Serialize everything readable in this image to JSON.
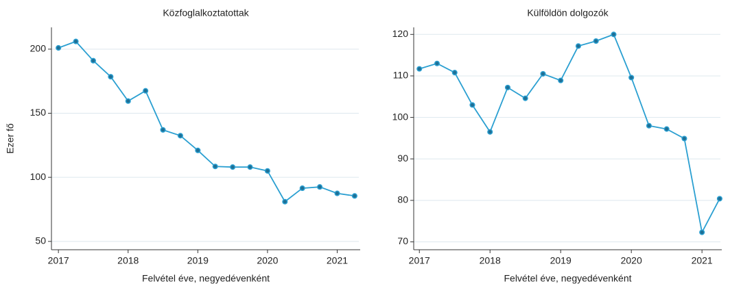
{
  "chart_data": [
    {
      "type": "line",
      "title": "Közfoglalkoztatottak",
      "x_label": "Felvétel éve, negyedévenként",
      "y_label": "Ezer fő",
      "x": [
        2017,
        2017.25,
        2017.5,
        2017.75,
        2018,
        2018.25,
        2018.5,
        2018.75,
        2019,
        2019.25,
        2019.5,
        2019.75,
        2020,
        2020.25,
        2020.5,
        2020.75,
        2021,
        2021.25
      ],
      "series": [
        {
          "name": "Közfoglalkoztatottak",
          "color": "#2a9fd1",
          "values": [
            201,
            206,
            191,
            178.5,
            159.5,
            167.5,
            137,
            132.5,
            121,
            108.5,
            108,
            108,
            105,
            81,
            91.5,
            92.5,
            87.5,
            85.5
          ]
        }
      ],
      "xlim": [
        2016.9,
        2021.33
      ],
      "xticks": [
        2017,
        2018,
        2019,
        2020,
        2021
      ],
      "ylim": [
        43.5,
        217
      ],
      "yticks": [
        50,
        100,
        150,
        200
      ],
      "grid": true
    },
    {
      "type": "line",
      "title": "Külföldön dolgozók",
      "x_label": "Felvétel éve, negyedévenként",
      "x": [
        2017,
        2017.25,
        2017.5,
        2017.75,
        2018,
        2018.25,
        2018.5,
        2018.75,
        2019,
        2019.25,
        2019.5,
        2019.75,
        2020,
        2020.25,
        2020.5,
        2020.75,
        2021,
        2021.25
      ],
      "series": [
        {
          "name": "Külföldön dolgozók",
          "color": "#2a9fd1",
          "values": [
            111.7,
            113,
            110.8,
            103,
            96.5,
            107.2,
            104.6,
            110.5,
            108.9,
            117.2,
            118.4,
            120,
            109.6,
            98,
            97.2,
            94.9,
            72.3,
            80.4
          ]
        }
      ],
      "xlim": [
        2016.92,
        2021.28
      ],
      "xticks": [
        2017,
        2018,
        2019,
        2020,
        2021
      ],
      "ylim": [
        68.1,
        121.7
      ],
      "yticks": [
        70,
        80,
        90,
        100,
        110,
        120
      ],
      "grid": true
    }
  ]
}
